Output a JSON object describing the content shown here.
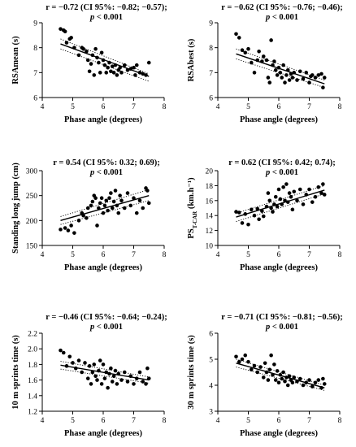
{
  "chart_data": [
    {
      "type": "scatter",
      "stat_line1": "r = −0.72 (CI 95%: −0.82; −0.57);",
      "stat_p_italic": "p",
      "stat_p_rest": " < 0.001",
      "xlabel": "Phase angle (degrees)",
      "ylabel": "RSAmean (s)",
      "ylabel_sub": "",
      "ylabel_tail": "",
      "xlim": [
        4,
        8
      ],
      "ylim": [
        6,
        9
      ],
      "xticks": [
        4,
        5,
        6,
        7,
        8
      ],
      "yticks": [
        6,
        7,
        8,
        9
      ],
      "ytick_labels": [
        "6",
        "7",
        "8",
        "9"
      ],
      "fit": {
        "x": [
          4.6,
          7.5
        ],
        "y": [
          8.15,
          6.85
        ]
      },
      "ci_upper": {
        "x": [
          4.6,
          7.5
        ],
        "y": [
          8.35,
          6.95
        ]
      },
      "ci_lower": {
        "x": [
          4.6,
          7.5
        ],
        "y": [
          7.95,
          6.65
        ]
      },
      "points": [
        [
          4.6,
          8.75
        ],
        [
          4.7,
          8.7
        ],
        [
          4.75,
          8.65
        ],
        [
          4.8,
          8.2
        ],
        [
          4.9,
          8.35
        ],
        [
          4.95,
          8.4
        ],
        [
          5.05,
          8.0
        ],
        [
          5.2,
          7.7
        ],
        [
          5.3,
          8.0
        ],
        [
          5.35,
          7.95
        ],
        [
          5.45,
          7.85
        ],
        [
          5.5,
          7.5
        ],
        [
          5.55,
          7.05
        ],
        [
          5.6,
          7.35
        ],
        [
          5.65,
          7.7
        ],
        [
          5.7,
          6.9
        ],
        [
          5.75,
          7.95
        ],
        [
          5.8,
          7.6
        ],
        [
          5.85,
          7.4
        ],
        [
          5.9,
          7.0
        ],
        [
          5.95,
          7.8
        ],
        [
          6.0,
          7.5
        ],
        [
          6.05,
          7.3
        ],
        [
          6.1,
          7.0
        ],
        [
          6.15,
          7.2
        ],
        [
          6.2,
          7.4
        ],
        [
          6.25,
          7.05
        ],
        [
          6.3,
          7.25
        ],
        [
          6.35,
          7.0
        ],
        [
          6.4,
          7.3
        ],
        [
          6.45,
          6.9
        ],
        [
          6.5,
          7.1
        ],
        [
          6.55,
          7.2
        ],
        [
          6.6,
          7.0
        ],
        [
          6.7,
          7.3
        ],
        [
          6.8,
          7.1
        ],
        [
          6.9,
          7.15
        ],
        [
          7.0,
          7.2
        ],
        [
          7.05,
          6.9
        ],
        [
          7.1,
          7.3
        ],
        [
          7.2,
          7.0
        ],
        [
          7.3,
          6.95
        ],
        [
          7.4,
          6.9
        ],
        [
          7.5,
          7.4
        ]
      ]
    },
    {
      "type": "scatter",
      "stat_line1": "r = −0.62 (CI 95%: −0.76; −0.46);",
      "stat_p_italic": "p",
      "stat_p_rest": " < 0.001",
      "xlabel": "Phase angle (degrees)",
      "ylabel": "RSAbest (s)",
      "ylabel_sub": "",
      "ylabel_tail": "",
      "xlim": [
        4,
        8
      ],
      "ylim": [
        6,
        9
      ],
      "xticks": [
        4,
        5,
        6,
        7,
        8
      ],
      "yticks": [
        6,
        7,
        8,
        9
      ],
      "ytick_labels": [
        "6",
        "7",
        "8",
        "9"
      ],
      "fit": {
        "x": [
          4.6,
          7.5
        ],
        "y": [
          7.75,
          6.55
        ]
      },
      "ci_upper": {
        "x": [
          4.6,
          7.5
        ],
        "y": [
          7.95,
          6.7
        ]
      },
      "ci_lower": {
        "x": [
          4.6,
          7.5
        ],
        "y": [
          7.55,
          6.4
        ]
      },
      "points": [
        [
          4.6,
          8.55
        ],
        [
          4.7,
          8.4
        ],
        [
          4.8,
          7.9
        ],
        [
          4.9,
          7.8
        ],
        [
          5.0,
          7.95
        ],
        [
          5.1,
          7.4
        ],
        [
          5.2,
          7.0
        ],
        [
          5.3,
          7.5
        ],
        [
          5.35,
          7.85
        ],
        [
          5.45,
          7.45
        ],
        [
          5.5,
          7.65
        ],
        [
          5.6,
          7.5
        ],
        [
          5.65,
          6.8
        ],
        [
          5.7,
          6.6
        ],
        [
          5.75,
          8.3
        ],
        [
          5.8,
          7.3
        ],
        [
          5.85,
          7.45
        ],
        [
          5.9,
          7.1
        ],
        [
          5.95,
          6.9
        ],
        [
          6.0,
          7.2
        ],
        [
          6.05,
          7.0
        ],
        [
          6.1,
          6.8
        ],
        [
          6.15,
          7.3
        ],
        [
          6.2,
          6.6
        ],
        [
          6.25,
          6.9
        ],
        [
          6.3,
          7.1
        ],
        [
          6.35,
          6.7
        ],
        [
          6.4,
          6.95
        ],
        [
          6.45,
          6.8
        ],
        [
          6.5,
          7.0
        ],
        [
          6.6,
          6.7
        ],
        [
          6.7,
          7.05
        ],
        [
          6.8,
          6.75
        ],
        [
          6.9,
          7.0
        ],
        [
          7.0,
          6.6
        ],
        [
          7.05,
          6.85
        ],
        [
          7.1,
          6.9
        ],
        [
          7.2,
          6.8
        ],
        [
          7.3,
          6.9
        ],
        [
          7.4,
          6.95
        ],
        [
          7.5,
          6.8
        ],
        [
          7.45,
          6.4
        ]
      ]
    },
    {
      "type": "scatter",
      "stat_line1": "r = 0.54 (CI 95%: 0.32; 0.69);",
      "stat_p_italic": "p",
      "stat_p_rest": " < 0.001",
      "xlabel": "Phase angle (degrees)",
      "ylabel": "Standing long jump (cm)",
      "ylabel_sub": "",
      "ylabel_tail": "",
      "xlim": [
        4,
        8
      ],
      "ylim": [
        150,
        300
      ],
      "xticks": [
        4,
        5,
        6,
        7,
        8
      ],
      "yticks": [
        150,
        200,
        250,
        300
      ],
      "ytick_labels": [
        "150",
        "200",
        "250",
        "300"
      ],
      "fit": {
        "x": [
          4.6,
          7.5
        ],
        "y": [
          200,
          250
        ]
      },
      "ci_upper": {
        "x": [
          4.6,
          7.5
        ],
        "y": [
          208,
          262
        ]
      },
      "ci_lower": {
        "x": [
          4.6,
          7.5
        ],
        "y": [
          192,
          240
        ]
      },
      "points": [
        [
          4.6,
          182
        ],
        [
          4.75,
          185
        ],
        [
          4.85,
          180
        ],
        [
          4.95,
          190
        ],
        [
          5.05,
          175
        ],
        [
          5.2,
          200
        ],
        [
          5.3,
          215
        ],
        [
          5.35,
          210
        ],
        [
          5.45,
          205
        ],
        [
          5.5,
          225
        ],
        [
          5.6,
          230
        ],
        [
          5.65,
          238
        ],
        [
          5.7,
          250
        ],
        [
          5.75,
          245
        ],
        [
          5.8,
          190
        ],
        [
          5.85,
          225
        ],
        [
          5.9,
          235
        ],
        [
          5.95,
          245
        ],
        [
          6.0,
          215
        ],
        [
          6.05,
          230
        ],
        [
          6.1,
          240
        ],
        [
          6.15,
          220
        ],
        [
          6.2,
          245
        ],
        [
          6.25,
          255
        ],
        [
          6.3,
          225
        ],
        [
          6.35,
          238
        ],
        [
          6.4,
          260
        ],
        [
          6.45,
          230
        ],
        [
          6.5,
          215
        ],
        [
          6.55,
          250
        ],
        [
          6.6,
          240
        ],
        [
          6.7,
          225
        ],
        [
          6.8,
          255
        ],
        [
          6.9,
          230
        ],
        [
          7.0,
          245
        ],
        [
          7.1,
          215
        ],
        [
          7.2,
          240
        ],
        [
          7.3,
          225
        ],
        [
          7.4,
          265
        ],
        [
          7.45,
          260
        ],
        [
          7.5,
          235
        ]
      ]
    },
    {
      "type": "scatter",
      "stat_line1": "r = 0.62 (CI 95%: 0.42; 0.74);",
      "stat_p_italic": "p",
      "stat_p_rest": " < 0.001",
      "xlabel": "Phase angle (degrees)",
      "ylabel": "PS",
      "ylabel_sub": "T-CAR",
      "ylabel_tail": " (km.h⁻¹)",
      "xlim": [
        4,
        8
      ],
      "ylim": [
        10,
        20
      ],
      "xticks": [
        4,
        5,
        6,
        7,
        8
      ],
      "yticks": [
        10,
        12,
        14,
        16,
        18,
        20
      ],
      "ytick_labels": [
        "10",
        "12",
        "14",
        "16",
        "18",
        "20"
      ],
      "fit": {
        "x": [
          4.6,
          7.5
        ],
        "y": [
          13.8,
          17.4
        ]
      },
      "ci_upper": {
        "x": [
          4.6,
          7.5
        ],
        "y": [
          14.3,
          18.0
        ]
      },
      "ci_lower": {
        "x": [
          4.6,
          7.5
        ],
        "y": [
          13.2,
          16.9
        ]
      },
      "points": [
        [
          4.6,
          14.5
        ],
        [
          4.7,
          14.4
        ],
        [
          4.8,
          13.0
        ],
        [
          4.9,
          14.2
        ],
        [
          5.0,
          12.8
        ],
        [
          5.1,
          14.8
        ],
        [
          5.2,
          14.0
        ],
        [
          5.3,
          14.9
        ],
        [
          5.35,
          13.5
        ],
        [
          5.45,
          14.6
        ],
        [
          5.5,
          13.9
        ],
        [
          5.6,
          15.2
        ],
        [
          5.65,
          17.0
        ],
        [
          5.7,
          16.0
        ],
        [
          5.75,
          15.0
        ],
        [
          5.8,
          14.5
        ],
        [
          5.85,
          15.5
        ],
        [
          5.9,
          16.5
        ],
        [
          5.95,
          15.2
        ],
        [
          6.0,
          17.5
        ],
        [
          6.05,
          16.2
        ],
        [
          6.1,
          15.5
        ],
        [
          6.15,
          17.8
        ],
        [
          6.2,
          16.0
        ],
        [
          6.25,
          18.2
        ],
        [
          6.3,
          15.8
        ],
        [
          6.35,
          17.0
        ],
        [
          6.4,
          16.5
        ],
        [
          6.45,
          14.8
        ],
        [
          6.5,
          17.2
        ],
        [
          6.6,
          16.0
        ],
        [
          6.7,
          17.5
        ],
        [
          6.8,
          15.5
        ],
        [
          6.9,
          16.8
        ],
        [
          7.0,
          17.5
        ],
        [
          7.1,
          15.8
        ],
        [
          7.2,
          16.5
        ],
        [
          7.3,
          17.8
        ],
        [
          7.4,
          17.0
        ],
        [
          7.45,
          18.2
        ],
        [
          7.5,
          16.8
        ]
      ]
    },
    {
      "type": "scatter",
      "stat_line1": "r = −0.46 (CI 95%: −0.64; −0.24);",
      "stat_p_italic": "p",
      "stat_p_rest": " < 0.001",
      "xlabel": "Phase angle (degrees)",
      "ylabel": "10 m sprints time (s)",
      "ylabel_sub": "",
      "ylabel_tail": "",
      "xlim": [
        4,
        8
      ],
      "ylim": [
        1.2,
        2.2
      ],
      "xticks": [
        4,
        5,
        6,
        7,
        8
      ],
      "yticks": [
        1.2,
        1.4,
        1.6,
        1.8,
        2.0,
        2.2
      ],
      "ytick_labels": [
        "1.2",
        "1.4",
        "1.6",
        "1.8",
        "2.0",
        "2.2"
      ],
      "fit": {
        "x": [
          4.6,
          7.5
        ],
        "y": [
          1.79,
          1.6
        ]
      },
      "ci_upper": {
        "x": [
          4.6,
          7.5
        ],
        "y": [
          1.84,
          1.64
        ]
      },
      "ci_lower": {
        "x": [
          4.6,
          7.5
        ],
        "y": [
          1.74,
          1.56
        ]
      },
      "points": [
        [
          4.6,
          1.98
        ],
        [
          4.7,
          1.95
        ],
        [
          4.8,
          1.78
        ],
        [
          4.9,
          1.9
        ],
        [
          5.0,
          1.82
        ],
        [
          5.1,
          1.75
        ],
        [
          5.2,
          1.85
        ],
        [
          5.3,
          1.7
        ],
        [
          5.4,
          1.82
        ],
        [
          5.5,
          1.62
        ],
        [
          5.55,
          1.78
        ],
        [
          5.6,
          1.55
        ],
        [
          5.65,
          1.7
        ],
        [
          5.7,
          1.8
        ],
        [
          5.75,
          1.65
        ],
        [
          5.8,
          1.6
        ],
        [
          5.85,
          1.72
        ],
        [
          5.9,
          1.85
        ],
        [
          5.95,
          1.55
        ],
        [
          6.0,
          1.8
        ],
        [
          6.05,
          1.62
        ],
        [
          6.1,
          1.7
        ],
        [
          6.15,
          1.5
        ],
        [
          6.2,
          1.68
        ],
        [
          6.25,
          1.75
        ],
        [
          6.3,
          1.58
        ],
        [
          6.35,
          1.65
        ],
        [
          6.4,
          1.72
        ],
        [
          6.45,
          1.55
        ],
        [
          6.5,
          1.68
        ],
        [
          6.6,
          1.6
        ],
        [
          6.7,
          1.7
        ],
        [
          6.8,
          1.58
        ],
        [
          6.9,
          1.65
        ],
        [
          7.0,
          1.55
        ],
        [
          7.1,
          1.62
        ],
        [
          7.2,
          1.7
        ],
        [
          7.3,
          1.58
        ],
        [
          7.4,
          1.55
        ],
        [
          7.45,
          1.75
        ],
        [
          7.5,
          1.62
        ]
      ]
    },
    {
      "type": "scatter",
      "stat_line1": "r = −0.71 (CI 95%: −0.81; −0.56);",
      "stat_p_italic": "p",
      "stat_p_rest": " < 0.001",
      "xlabel": "Phase angle (degrees)",
      "ylabel": "30 m sprints time (s)",
      "ylabel_sub": "",
      "ylabel_tail": "",
      "xlim": [
        4,
        8
      ],
      "ylim": [
        3,
        6
      ],
      "xticks": [
        4,
        5,
        6,
        7,
        8
      ],
      "yticks": [
        3,
        4,
        5,
        6
      ],
      "ytick_labels": [
        "3",
        "4",
        "5",
        "6"
      ],
      "fit": {
        "x": [
          4.6,
          7.5
        ],
        "y": [
          4.85,
          3.9
        ]
      },
      "ci_upper": {
        "x": [
          4.6,
          7.5
        ],
        "y": [
          5.0,
          4.0
        ]
      },
      "ci_lower": {
        "x": [
          4.6,
          7.5
        ],
        "y": [
          4.7,
          3.8
        ]
      },
      "points": [
        [
          4.6,
          5.1
        ],
        [
          4.7,
          4.9
        ],
        [
          4.8,
          5.0
        ],
        [
          4.9,
          5.15
        ],
        [
          5.0,
          4.9
        ],
        [
          5.1,
          4.6
        ],
        [
          5.2,
          4.75
        ],
        [
          5.3,
          4.5
        ],
        [
          5.4,
          4.7
        ],
        [
          5.5,
          4.3
        ],
        [
          5.55,
          4.85
        ],
        [
          5.6,
          4.5
        ],
        [
          5.65,
          4.2
        ],
        [
          5.7,
          4.6
        ],
        [
          5.75,
          5.15
        ],
        [
          5.8,
          4.4
        ],
        [
          5.85,
          4.8
        ],
        [
          5.9,
          4.2
        ],
        [
          5.95,
          4.55
        ],
        [
          6.0,
          4.1
        ],
        [
          6.05,
          4.4
        ],
        [
          6.1,
          4.25
        ],
        [
          6.15,
          4.5
        ],
        [
          6.2,
          4.15
        ],
        [
          6.25,
          4.3
        ],
        [
          6.3,
          4.0
        ],
        [
          6.35,
          4.35
        ],
        [
          6.4,
          4.2
        ],
        [
          6.45,
          4.1
        ],
        [
          6.5,
          4.3
        ],
        [
          6.6,
          4.15
        ],
        [
          6.7,
          4.25
        ],
        [
          6.8,
          4.0
        ],
        [
          6.9,
          4.1
        ],
        [
          7.0,
          4.2
        ],
        [
          7.1,
          3.95
        ],
        [
          7.2,
          4.1
        ],
        [
          7.3,
          4.2
        ],
        [
          7.4,
          3.9
        ],
        [
          7.45,
          4.25
        ],
        [
          7.5,
          4.05
        ]
      ]
    }
  ]
}
